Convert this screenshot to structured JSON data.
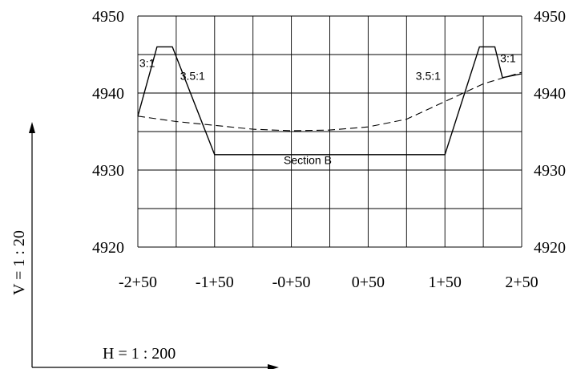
{
  "chart_data": {
    "type": "line",
    "title": "",
    "xlabel": "",
    "ylabel": "",
    "x_tick_labels": [
      "-2+50",
      "-1+50",
      "-0+50",
      "0+50",
      "1+50",
      "2+50"
    ],
    "y_tick_labels_left": [
      "4950",
      "4940",
      "4930",
      "4920"
    ],
    "y_tick_labels_right": [
      "4950",
      "4940",
      "4930",
      "4920"
    ],
    "x_range": [
      -2.5,
      2.5
    ],
    "ylim": [
      4920,
      4950
    ],
    "x_grid_step": 0.5,
    "y_grid_step": 5,
    "grid": true,
    "series": [
      {
        "style": "solid",
        "color": "#000000",
        "x": [
          -2.5,
          -2.25,
          -2.05,
          -1.5,
          1.5,
          1.95,
          2.15,
          2.25,
          2.5
        ],
        "y": [
          4937,
          4946,
          4946,
          4932,
          4932,
          4946,
          4946,
          4942,
          4942.5
        ]
      },
      {
        "style": "dashed",
        "color": "#000000",
        "x": [
          -2.5,
          -2.0,
          -1.5,
          -1.0,
          -0.5,
          0.0,
          0.5,
          1.0,
          1.5,
          2.0,
          2.5
        ],
        "y": [
          4937,
          4936.3,
          4935.8,
          4935.3,
          4935.1,
          4935.2,
          4935.6,
          4936.6,
          4938.9,
          4941.2,
          4942.7
        ]
      }
    ],
    "annotations": [
      {
        "text": "3:1",
        "x": -2.48,
        "y": 4943.4
      },
      {
        "text": "3.5:1",
        "x": -1.95,
        "y": 4941.7
      },
      {
        "text": "Section B",
        "x": -0.6,
        "y": 4930.8
      },
      {
        "text": "3.5:1",
        "x": 1.12,
        "y": 4941.7
      },
      {
        "text": "3:1",
        "x": 2.22,
        "y": 4944.0
      }
    ]
  },
  "scales": {
    "vertical": "V = 1 : 20",
    "horizontal": "H = 1 : 200"
  }
}
